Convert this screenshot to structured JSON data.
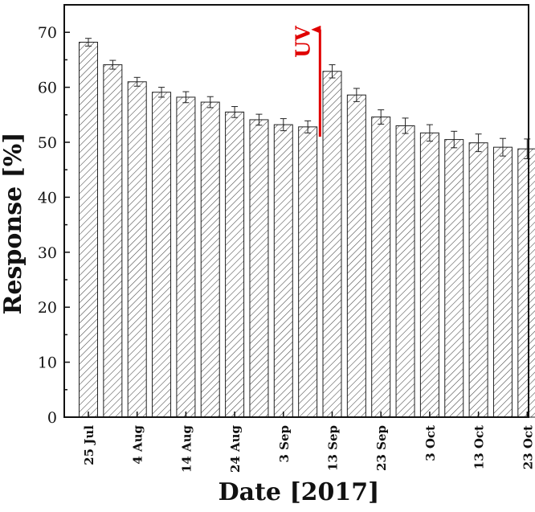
{
  "chart_data": {
    "type": "bar",
    "xlabel": "Date [2017]",
    "ylabel": "Response [%]",
    "ylim": [
      0,
      75
    ],
    "yticks": [
      0,
      10,
      20,
      30,
      40,
      50,
      60,
      70
    ],
    "categories": [
      "25 Jul",
      "",
      "4 Aug",
      "",
      "14 Aug",
      "",
      "24 Aug",
      "",
      "3 Sep",
      "",
      "13 Sep",
      "",
      "23 Sep",
      "",
      "3 Oct",
      "",
      "13 Oct",
      "",
      "23 Oct"
    ],
    "series": [
      {
        "values": [
          68.2,
          64.1,
          61.0,
          59.1,
          58.2,
          57.3,
          55.5,
          54.1,
          53.2,
          52.8,
          62.9,
          58.6,
          54.6,
          53.0,
          51.7,
          50.5,
          49.9,
          49.1,
          48.8
        ],
        "errors": [
          0.7,
          0.8,
          0.8,
          0.9,
          1.0,
          1.0,
          1.0,
          1.0,
          1.1,
          1.1,
          1.2,
          1.2,
          1.3,
          1.4,
          1.5,
          1.5,
          1.6,
          1.6,
          1.8
        ]
      }
    ],
    "grid": false,
    "annotations": [
      {
        "text": "UV",
        "color": "#e00000",
        "between_bars": [
          9,
          10
        ],
        "arrow_from": 51,
        "arrow_to": 70.5
      }
    ]
  }
}
